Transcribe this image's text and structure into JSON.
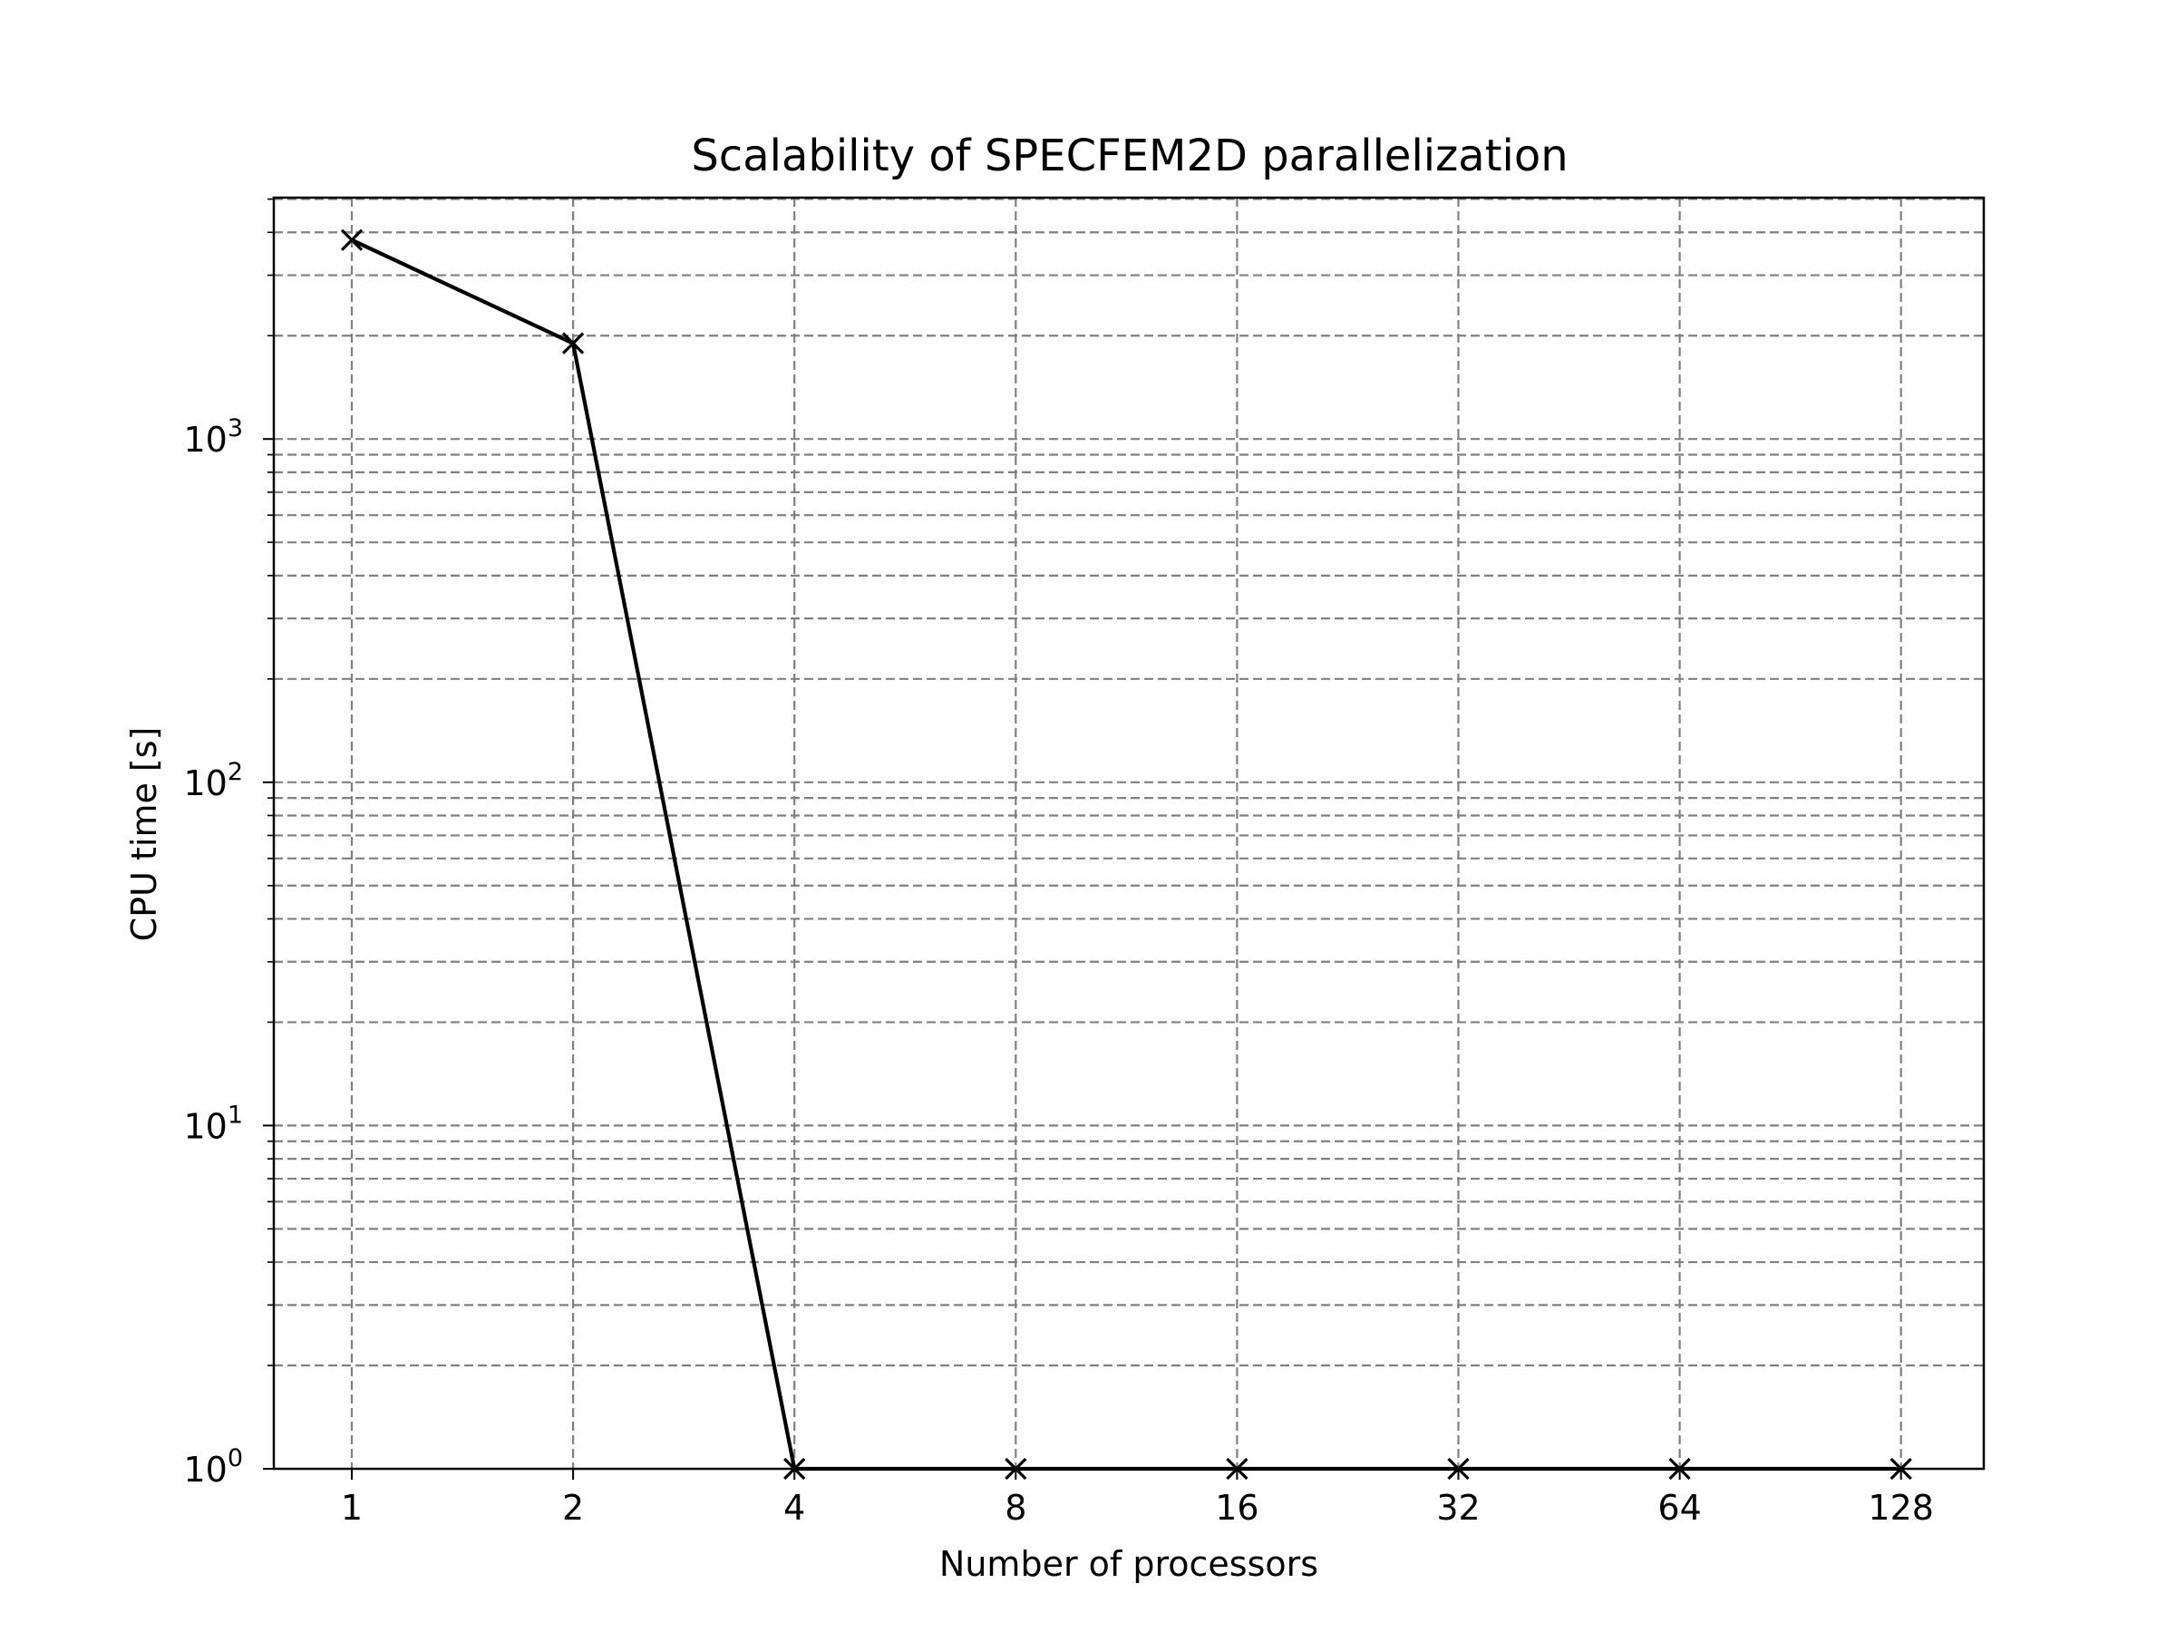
{
  "chart_data": {
    "type": "line",
    "title": "Scalability of SPECFEM2D parallelization",
    "xlabel": "Number of processors",
    "ylabel": "CPU time [s]",
    "xscale": "log2",
    "yscale": "log",
    "ylim": [
      1,
      5000
    ],
    "x": [
      1,
      2,
      4,
      8,
      16,
      32,
      64,
      128
    ],
    "x_tick_labels": [
      "1",
      "2",
      "4",
      "8",
      "16",
      "32",
      "64",
      "128"
    ],
    "y_tick_labels": [
      {
        "base": "10",
        "exp": "0",
        "value": 1
      },
      {
        "base": "10",
        "exp": "1",
        "value": 10
      },
      {
        "base": "10",
        "exp": "2",
        "value": 100
      },
      {
        "base": "10",
        "exp": "3",
        "value": 1000
      }
    ],
    "series": [
      {
        "values": [
          3800,
          1900,
          1,
          1,
          1,
          1,
          1,
          1
        ],
        "marker": "x",
        "color": "#000000"
      }
    ],
    "grid": "major and minor",
    "grid_color": "#808080",
    "legend": "none"
  }
}
